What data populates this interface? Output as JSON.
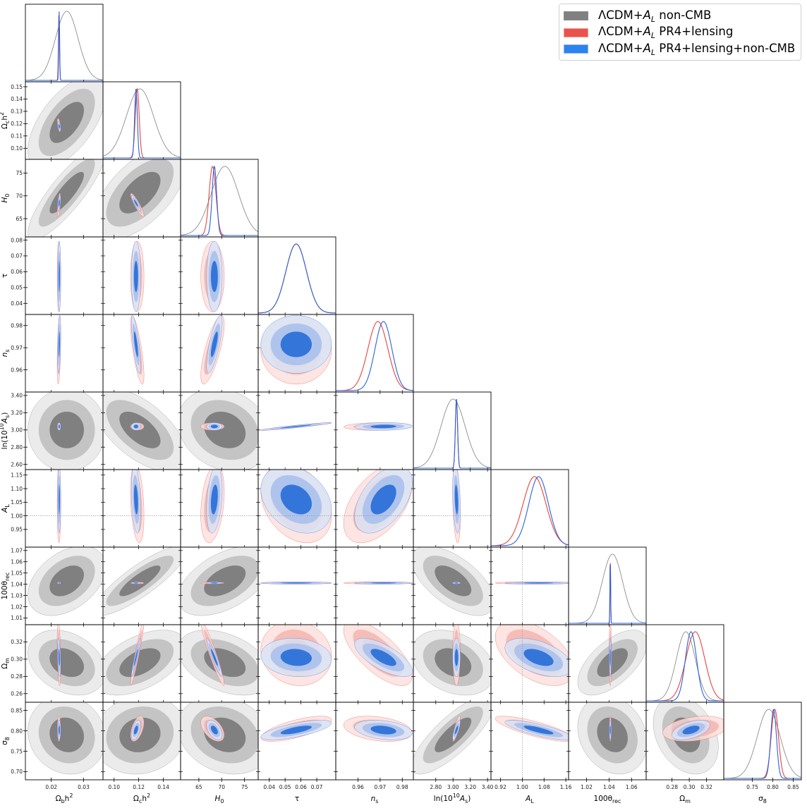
{
  "chart_data": {
    "type": "triangle",
    "title": "",
    "params": [
      {
        "name": "ombh2",
        "label": [
          {
            "t": "Ω"
          },
          {
            "t": "b",
            "s": "sub"
          },
          {
            "t": "h"
          },
          {
            "t": "2",
            "s": "sup"
          }
        ],
        "range": [
          0.012,
          0.036
        ],
        "xticks": [
          0.02,
          0.03
        ],
        "yticks": []
      },
      {
        "name": "omch2",
        "label": [
          {
            "t": "Ω"
          },
          {
            "t": "c",
            "s": "sub"
          },
          {
            "t": "h"
          },
          {
            "t": "2",
            "s": "sup"
          }
        ],
        "range": [
          0.091,
          0.154
        ],
        "xticks": [
          0.1,
          0.12,
          0.14
        ],
        "yticks": [
          0.1,
          0.11,
          0.12,
          0.13,
          0.14,
          0.15
        ]
      },
      {
        "name": "H0",
        "label": [
          {
            "t": "H",
            "i": 1
          },
          {
            "t": "0",
            "s": "sub"
          }
        ],
        "range": [
          61,
          78
        ],
        "xticks": [
          65,
          70,
          75
        ],
        "yticks": [
          65,
          70,
          75
        ]
      },
      {
        "name": "tau",
        "label": [
          {
            "t": "τ"
          }
        ],
        "range": [
          0.033,
          0.082
        ],
        "xticks": [
          0.04,
          0.05,
          0.06,
          0.07
        ],
        "yticks": [
          0.04,
          0.05,
          0.06,
          0.07,
          0.08
        ]
      },
      {
        "name": "ns",
        "label": [
          {
            "t": "n",
            "i": 1
          },
          {
            "t": "s",
            "s": "sub"
          }
        ],
        "range": [
          0.95,
          0.985
        ],
        "xticks": [
          0.96,
          0.97,
          0.98
        ],
        "yticks": [
          0.96,
          0.97,
          0.98
        ]
      },
      {
        "name": "logA",
        "label": [
          {
            "t": "ln(10"
          },
          {
            "t": "10",
            "s": "sup"
          },
          {
            "t": "A",
            "i": 1
          },
          {
            "t": "s",
            "s": "sub"
          },
          {
            "t": ")"
          }
        ],
        "range": [
          2.54,
          3.44
        ],
        "xticks": [
          2.8,
          3.0,
          3.2,
          3.4
        ],
        "yticks": [
          2.6,
          2.8,
          3.0,
          3.2,
          3.4
        ]
      },
      {
        "name": "AL",
        "label": [
          {
            "t": "A",
            "i": 1
          },
          {
            "t": "L",
            "s": "sub"
          }
        ],
        "range": [
          0.885,
          1.17
        ],
        "xticks": [
          0.92,
          1.0,
          1.08,
          1.16
        ],
        "yticks": [
          0.95,
          1.0,
          1.05,
          1.1,
          1.15
        ]
      },
      {
        "name": "theta",
        "label": [
          {
            "t": "100θ"
          },
          {
            "t": "rec",
            "s": "sub"
          }
        ],
        "range": [
          1.004,
          1.073
        ],
        "xticks": [
          1.02,
          1.04,
          1.06
        ],
        "yticks": [
          1.01,
          1.02,
          1.03,
          1.04,
          1.05,
          1.06,
          1.07
        ]
      },
      {
        "name": "omegam",
        "label": [
          {
            "t": "Ω"
          },
          {
            "t": "m",
            "s": "sub"
          }
        ],
        "range": [
          0.25,
          0.34
        ],
        "xticks": [
          0.28,
          0.3,
          0.32
        ],
        "yticks": [
          0.26,
          0.28,
          0.3,
          0.32
        ]
      },
      {
        "name": "sigma8",
        "label": [
          {
            "t": "σ"
          },
          {
            "t": "8",
            "s": "sub"
          }
        ],
        "range": [
          0.68,
          0.87
        ],
        "xticks": [
          0.75,
          0.8,
          0.85
        ],
        "yticks": [
          0.7,
          0.75,
          0.8,
          0.85
        ]
      }
    ],
    "reference_lines": [
      {
        "param_index": 6,
        "value": 1.0
      }
    ],
    "series": [
      {
        "name": "non-CMB",
        "legend": {
          "pre": "ΛCDM+",
          "a": "A",
          "sub": "L",
          "post": " non-CMB"
        },
        "line": "#808080",
        "fills": [
          "#ebebeb",
          "#c4c4c4",
          "#808080"
        ],
        "mean": [
          0.0248,
          0.121,
          70.7,
          null,
          null,
          3.0,
          null,
          1.043,
          0.296,
          0.79
        ],
        "sigma": [
          0.0035,
          0.011,
          3.0,
          null,
          null,
          0.14,
          null,
          0.009,
          0.011,
          0.028
        ],
        "corr": [
          [
            0,
            1,
            0.6
          ],
          [
            0,
            2,
            0.85
          ],
          [
            1,
            2,
            0.6
          ],
          [
            1,
            5,
            -0.6
          ],
          [
            2,
            5,
            -0.2
          ],
          [
            0,
            7,
            0.4
          ],
          [
            1,
            7,
            0.85
          ],
          [
            2,
            7,
            0.5
          ],
          [
            5,
            7,
            -0.6
          ],
          [
            0,
            8,
            -0.3
          ],
          [
            1,
            8,
            0.5
          ],
          [
            2,
            8,
            -0.4
          ],
          [
            5,
            8,
            -0.3
          ],
          [
            7,
            8,
            0.6
          ],
          [
            5,
            9,
            0.8
          ],
          [
            1,
            9,
            0.1
          ],
          [
            0,
            9,
            -0.1
          ],
          [
            2,
            9,
            -0.2
          ],
          [
            7,
            9,
            -0.2
          ],
          [
            8,
            9,
            -0.3
          ]
        ]
      },
      {
        "name": "PR4+lensing",
        "legend": {
          "pre": "ΛCDM+",
          "a": "A",
          "sub": "L",
          "post": " PR4+lensing"
        },
        "line": "#e8453c",
        "fills": [
          "#fbdedb",
          "#f4b2ab",
          "#ee8c84"
        ],
        "mean": [
          0.02238,
          0.1188,
          68.0,
          0.057,
          0.969,
          3.04,
          1.045,
          1.0411,
          0.307,
          0.805
        ],
        "sigma": [
          0.00016,
          0.0016,
          0.75,
          0.0065,
          0.0045,
          0.013,
          0.042,
          0.0003,
          0.011,
          0.009
        ],
        "corr": [
          [
            0,
            1,
            -0.5
          ],
          [
            0,
            2,
            0.5
          ],
          [
            1,
            2,
            -0.9
          ],
          [
            0,
            4,
            0.4
          ],
          [
            1,
            4,
            -0.75
          ],
          [
            2,
            4,
            0.75
          ],
          [
            3,
            5,
            0.95
          ],
          [
            4,
            5,
            0.1
          ],
          [
            3,
            6,
            -0.3
          ],
          [
            4,
            6,
            0.5
          ],
          [
            1,
            6,
            -0.3
          ],
          [
            2,
            6,
            0.3
          ],
          [
            5,
            6,
            -0.3
          ],
          [
            1,
            8,
            0.95
          ],
          [
            2,
            8,
            -0.95
          ],
          [
            4,
            8,
            -0.7
          ],
          [
            6,
            8,
            -0.5
          ],
          [
            0,
            8,
            -0.4
          ],
          [
            3,
            8,
            -0.1
          ],
          [
            5,
            9,
            0.8
          ],
          [
            3,
            9,
            0.7
          ],
          [
            6,
            9,
            -0.8
          ],
          [
            8,
            9,
            0.3
          ],
          [
            1,
            9,
            0.5
          ],
          [
            2,
            9,
            -0.5
          ],
          [
            4,
            9,
            -0.3
          ]
        ]
      },
      {
        "name": "PR4+lensing+non-CMB",
        "legend": {
          "pre": "ΛCDM+",
          "a": "A",
          "sub": "L",
          "post": " PR4+lensing+non-CMB"
        },
        "line": "#2b62e0",
        "fills": [
          "#d9e4f6",
          "#a7c0ec",
          "#1f67d6"
        ],
        "mean": [
          0.02245,
          0.1178,
          68.4,
          0.057,
          0.9715,
          3.04,
          1.06,
          1.0411,
          0.302,
          0.802
        ],
        "sigma": [
          0.00014,
          0.0011,
          0.5,
          0.0065,
          0.0038,
          0.013,
          0.036,
          0.00028,
          0.0065,
          0.007
        ],
        "corr": [
          [
            0,
            1,
            -0.5
          ],
          [
            0,
            2,
            0.5
          ],
          [
            1,
            2,
            -0.9
          ],
          [
            0,
            4,
            0.4
          ],
          [
            1,
            4,
            -0.75
          ],
          [
            2,
            4,
            0.75
          ],
          [
            3,
            5,
            0.95
          ],
          [
            4,
            5,
            0.1
          ],
          [
            3,
            6,
            -0.3
          ],
          [
            4,
            6,
            0.5
          ],
          [
            1,
            6,
            -0.3
          ],
          [
            2,
            6,
            0.3
          ],
          [
            5,
            6,
            -0.3
          ],
          [
            1,
            8,
            0.95
          ],
          [
            2,
            8,
            -0.95
          ],
          [
            4,
            8,
            -0.7
          ],
          [
            6,
            8,
            -0.5
          ],
          [
            0,
            8,
            -0.4
          ],
          [
            3,
            8,
            -0.1
          ],
          [
            5,
            9,
            0.8
          ],
          [
            3,
            9,
            0.7
          ],
          [
            6,
            9,
            -0.8
          ],
          [
            8,
            9,
            0.5
          ],
          [
            1,
            9,
            0.5
          ],
          [
            2,
            9,
            -0.5
          ],
          [
            4,
            9,
            -0.3
          ]
        ]
      }
    ],
    "legend_position": "top-right"
  }
}
